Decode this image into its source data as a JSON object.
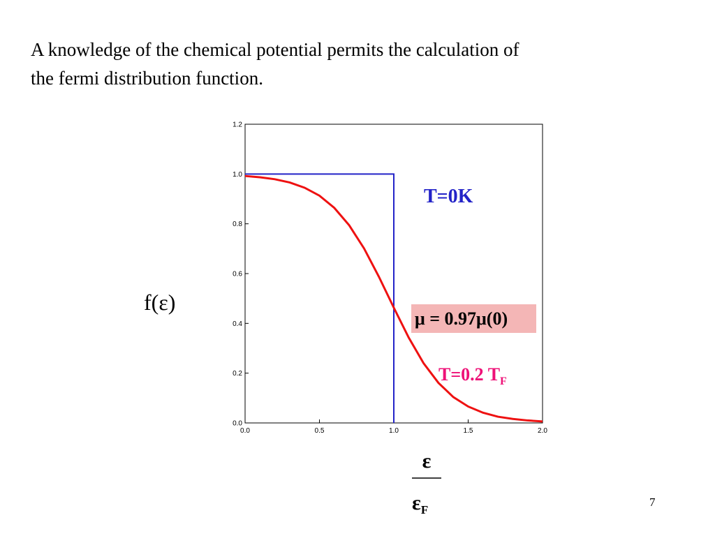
{
  "slide": {
    "text_line_1": "A knowledge of the chemical potential permits the calculation of",
    "text_line_2": "the fermi distribution function.",
    "page_number": "7"
  },
  "chart_data": {
    "type": "line",
    "ylabel": "f(ε)",
    "xlabel_numerator": "ε",
    "xlabel_denominator": "ε",
    "xlabel_denominator_subscript": "F",
    "annotation": "μ = 0.97μ(0)",
    "xlim": [
      0,
      2
    ],
    "ylim": [
      0,
      1.2
    ],
    "xticks": [
      {
        "value": 0,
        "label": "0.0"
      },
      {
        "value": 0.5,
        "label": "0.5"
      },
      {
        "value": 1,
        "label": "1.0"
      },
      {
        "value": 1.5,
        "label": "1.5"
      },
      {
        "value": 2,
        "label": "2.0"
      }
    ],
    "yticks": [
      {
        "value": 0,
        "label": "0.0"
      },
      {
        "value": 0.2,
        "label": "0.2"
      },
      {
        "value": 0.4,
        "label": "0.4"
      },
      {
        "value": 0.6,
        "label": "0.6"
      },
      {
        "value": 0.8,
        "label": "0.8"
      },
      {
        "value": 1,
        "label": "1.0"
      },
      {
        "value": 1.2,
        "label": "1.2"
      }
    ],
    "series": [
      {
        "name": "T=0K",
        "color": "#2323c8",
        "x": [
          0,
          1,
          1
        ],
        "values": [
          1,
          1,
          0
        ]
      },
      {
        "name": "T=0.2 T",
        "name_subscript": "F",
        "color": "#ee1111",
        "x": [
          0,
          0.1,
          0.2,
          0.3,
          0.4,
          0.5,
          0.6,
          0.7,
          0.8,
          0.9,
          1.0,
          1.1,
          1.2,
          1.3,
          1.4,
          1.5,
          1.6,
          1.7,
          1.8,
          1.9,
          2.0
        ],
        "values": [
          0.992,
          0.987,
          0.979,
          0.966,
          0.945,
          0.913,
          0.864,
          0.794,
          0.701,
          0.587,
          0.463,
          0.343,
          0.24,
          0.161,
          0.104,
          0.066,
          0.041,
          0.025,
          0.016,
          0.01,
          0.006
        ]
      }
    ]
  }
}
